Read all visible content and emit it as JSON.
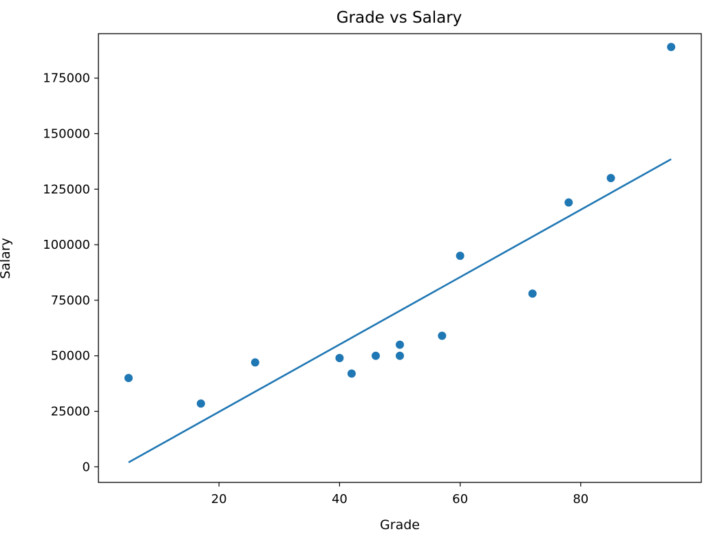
{
  "chart_data": {
    "type": "scatter",
    "title": "Grade vs Salary",
    "xlabel": "Grade",
    "ylabel": "Salary",
    "xlim": [
      0,
      100
    ],
    "ylim": [
      -7000,
      195000
    ],
    "xticks": [
      20,
      40,
      60,
      80
    ],
    "yticks": [
      0,
      25000,
      50000,
      75000,
      100000,
      125000,
      150000,
      175000
    ],
    "grid": false,
    "legend": "none",
    "colors": {
      "points": "#1f77b4",
      "fit_line": "#1f77b4"
    },
    "series": [
      {
        "type": "scatter",
        "x": [
          5,
          17,
          26,
          40,
          42,
          46,
          50,
          50,
          57,
          60,
          72,
          78,
          85,
          95
        ],
        "y": [
          40000,
          28500,
          47000,
          49000,
          42000,
          50000,
          55000,
          50000,
          59000,
          95000,
          78000,
          119000,
          130000,
          189000
        ]
      },
      {
        "type": "line",
        "x": [
          5,
          95
        ],
        "y": [
          2000,
          138500
        ]
      }
    ]
  }
}
